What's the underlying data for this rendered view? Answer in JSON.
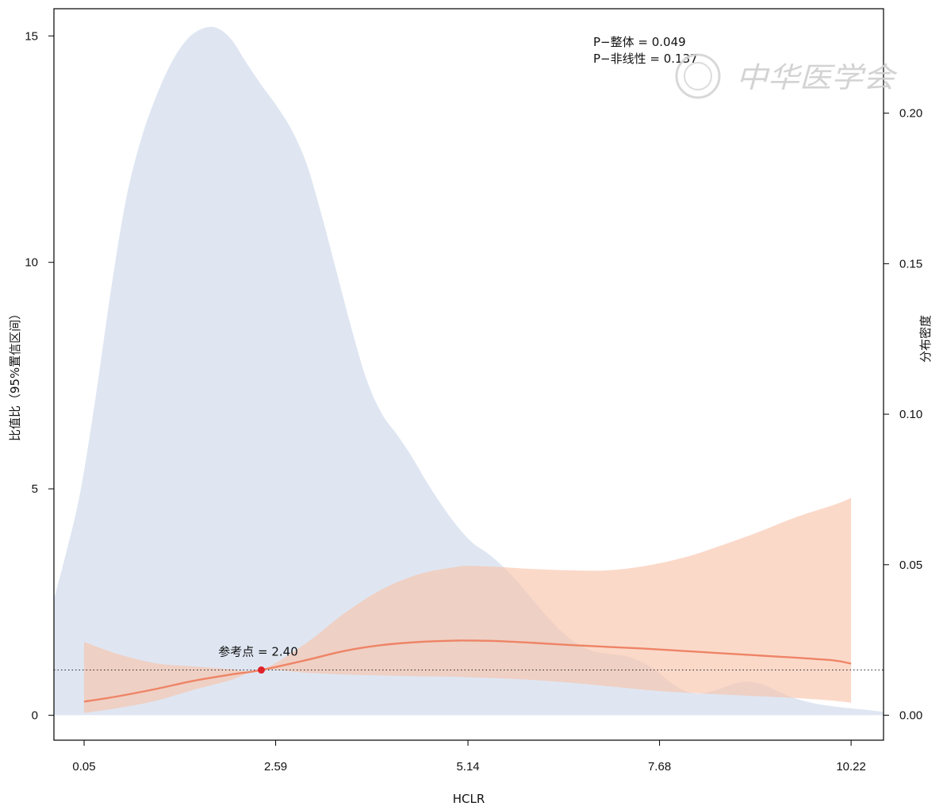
{
  "chart_data": {
    "type": "line",
    "xlabel": "HCLR",
    "ylabel_left": "比值比（95%置信区间）",
    "ylabel_right": "分布密度",
    "x_ticks": [
      "0.05",
      "2.59",
      "5.14",
      "7.68",
      "10.22"
    ],
    "x_tick_values": [
      0.05,
      2.59,
      5.14,
      7.68,
      10.22
    ],
    "xlim": [
      -0.35,
      10.65
    ],
    "y_left_ticks": [
      "0",
      "5",
      "10",
      "15"
    ],
    "y_left_values": [
      0,
      5,
      10,
      15
    ],
    "ylim_left": [
      -0.55,
      15.6
    ],
    "y_right_ticks": [
      "0.00",
      "0.05",
      "0.10",
      "0.15",
      "0.20"
    ],
    "y_right_values": [
      0,
      0.05,
      0.1,
      0.15,
      0.2
    ],
    "ylim_right": [
      -0.0083,
      0.2347
    ],
    "reference_line_y": 1,
    "reference_point": {
      "x": 2.4,
      "y": 1,
      "label": "参考点 = 2.40"
    },
    "annotations": {
      "p_overall": "P−整体  = 0.049",
      "p_nonlinear": "P−非线性 = 0.137"
    },
    "watermark": "中华医学会",
    "series": [
      {
        "kind": "odds_ratio",
        "x": [
          0.05,
          0.5,
          1.0,
          1.5,
          2.0,
          2.4,
          3.0,
          3.5,
          4.0,
          4.5,
          5.0,
          5.14,
          5.5,
          6.0,
          6.5,
          7.0,
          7.5,
          8.0,
          8.5,
          9.0,
          9.5,
          10.0,
          10.22
        ],
        "y": [
          0.3,
          0.42,
          0.58,
          0.76,
          0.9,
          1.0,
          1.22,
          1.42,
          1.55,
          1.62,
          1.65,
          1.65,
          1.64,
          1.6,
          1.55,
          1.51,
          1.47,
          1.42,
          1.37,
          1.32,
          1.27,
          1.21,
          1.14
        ],
        "lower": [
          0.05,
          0.16,
          0.32,
          0.56,
          0.78,
          1.0,
          0.94,
          0.9,
          0.88,
          0.86,
          0.85,
          0.84,
          0.82,
          0.78,
          0.72,
          0.64,
          0.56,
          0.5,
          0.46,
          0.42,
          0.38,
          0.32,
          0.28
        ],
        "upper": [
          1.62,
          1.35,
          1.15,
          1.08,
          1.02,
          1.0,
          1.6,
          2.25,
          2.78,
          3.12,
          3.28,
          3.3,
          3.28,
          3.23,
          3.2,
          3.2,
          3.3,
          3.48,
          3.75,
          4.05,
          4.38,
          4.65,
          4.8
        ],
        "color": "#ee8466",
        "band_color": "#f9c1a8"
      },
      {
        "kind": "density",
        "x": [
          -0.35,
          -0.2,
          0.0,
          0.2,
          0.4,
          0.6,
          0.8,
          1.0,
          1.2,
          1.4,
          1.6,
          1.8,
          2.0,
          2.2,
          2.4,
          2.6,
          2.8,
          3.0,
          3.2,
          3.4,
          3.6,
          3.8,
          4.0,
          4.2,
          4.4,
          4.6,
          4.8,
          5.0,
          5.2,
          5.4,
          5.6,
          5.8,
          6.0,
          6.2,
          6.4,
          6.6,
          6.8,
          7.0,
          7.2,
          7.4,
          7.6,
          7.8,
          8.0,
          8.2,
          8.4,
          8.6,
          8.8,
          9.0,
          9.2,
          9.4,
          9.6,
          9.8,
          10.0,
          10.2,
          10.4,
          10.65
        ],
        "y": [
          0.0386,
          0.0528,
          0.0742,
          0.1052,
          0.1402,
          0.1706,
          0.1909,
          0.2052,
          0.2164,
          0.2241,
          0.2279,
          0.2284,
          0.2246,
          0.2168,
          0.2094,
          0.2025,
          0.1945,
          0.1832,
          0.1661,
          0.1471,
          0.1281,
          0.1112,
          0.1001,
          0.0932,
          0.0857,
          0.0772,
          0.0695,
          0.0627,
          0.0573,
          0.0538,
          0.0495,
          0.0443,
          0.0383,
          0.0325,
          0.0273,
          0.0236,
          0.0213,
          0.0204,
          0.0198,
          0.0182,
          0.0155,
          0.0114,
          0.0082,
          0.0072,
          0.0081,
          0.0099,
          0.0111,
          0.0106,
          0.0085,
          0.0063,
          0.0047,
          0.0036,
          0.0029,
          0.0023,
          0.0018,
          0.0011
        ],
        "color": "#dfe6f2"
      }
    ]
  }
}
